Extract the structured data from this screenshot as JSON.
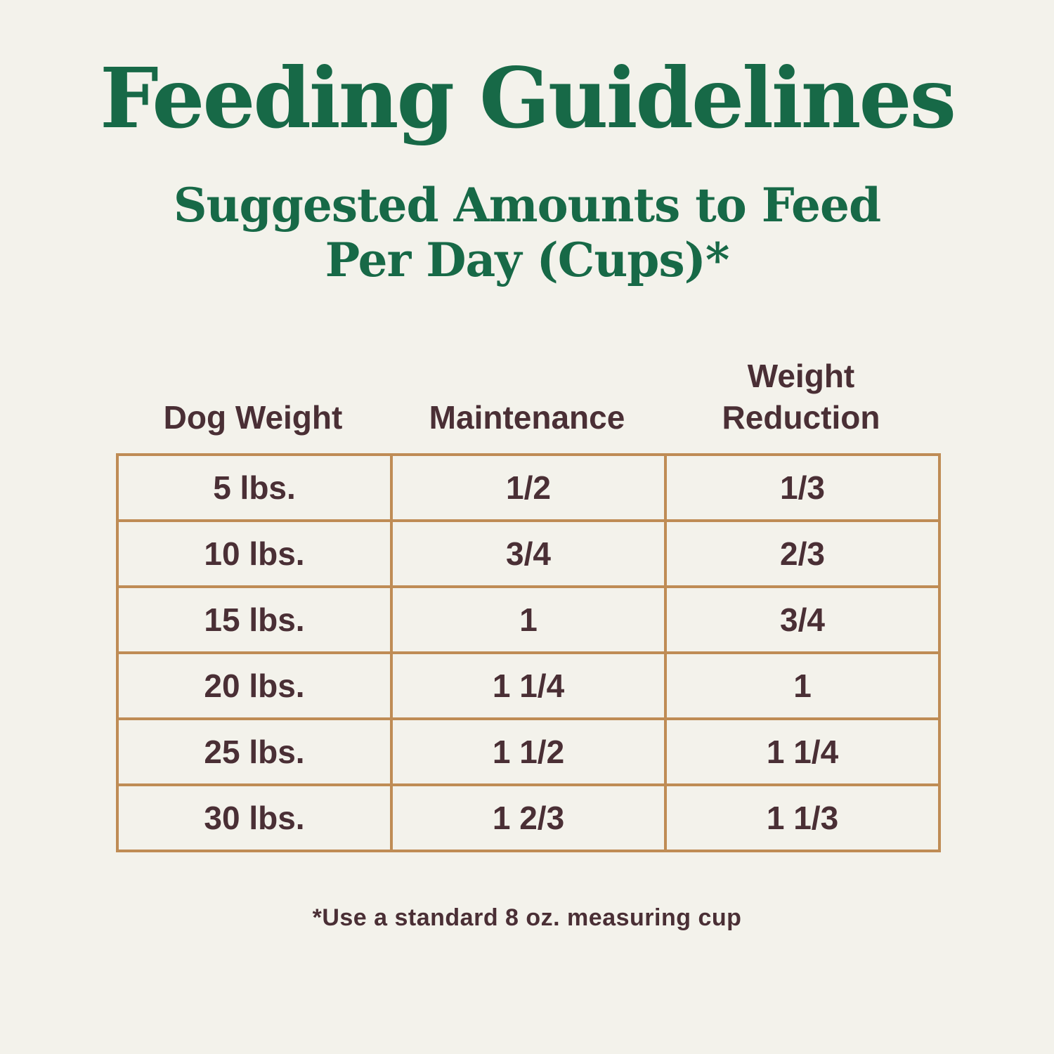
{
  "page": {
    "title": "Feeding Guidelines",
    "subtitle_line1": "Suggested Amounts to Feed",
    "subtitle_line2": "Per Day (Cups)*",
    "footnote": "*Use a standard 8 oz. measuring cup"
  },
  "colors": {
    "background": "#f3f2eb",
    "heading_green": "#176947",
    "text_brown": "#4a2f35",
    "table_border_tan": "#bf8c55"
  },
  "chart_data": {
    "type": "table",
    "title": "Feeding Guidelines",
    "subtitle": "Suggested Amounts to Feed Per Day (Cups)*",
    "units": "cups per day",
    "columns": [
      "Dog Weight",
      "Maintenance",
      "Weight Reduction"
    ],
    "rows": [
      [
        "5 lbs.",
        "1/2",
        "1/3"
      ],
      [
        "10 lbs.",
        "3/4",
        "2/3"
      ],
      [
        "15 lbs.",
        "1",
        "3/4"
      ],
      [
        "20 lbs.",
        "1 1/4",
        "1"
      ],
      [
        "25 lbs.",
        "1 1/2",
        "1 1/4"
      ],
      [
        "30 lbs.",
        "1 2/3",
        "1 1/3"
      ]
    ],
    "footnote": "*Use a standard 8 oz. measuring cup"
  }
}
